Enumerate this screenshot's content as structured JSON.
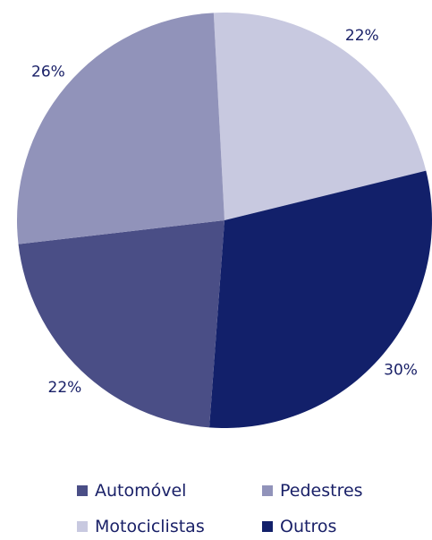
{
  "chart_data": {
    "type": "pie",
    "slices": [
      {
        "label": "Motociclistas",
        "value": 22,
        "value_label": "22%",
        "color": "#c8c9e0"
      },
      {
        "label": "Outros",
        "value": 30,
        "value_label": "30%",
        "color": "#12206a"
      },
      {
        "label": "Automóvel",
        "value": 22,
        "value_label": "22%",
        "color": "#4a4e86"
      },
      {
        "label": "Pedestres",
        "value": 26,
        "value_label": "26%",
        "color": "#9193ba"
      }
    ],
    "start_angle_deg": -3,
    "legend_position": "bottom",
    "legend": [
      {
        "label": "Automóvel",
        "color": "#4a4e86"
      },
      {
        "label": "Pedestres",
        "color": "#9193ba"
      },
      {
        "label": "Motociclistas",
        "color": "#c8c9e0"
      },
      {
        "label": "Outros",
        "color": "#12206a"
      }
    ],
    "text_color": "#1a2168"
  }
}
